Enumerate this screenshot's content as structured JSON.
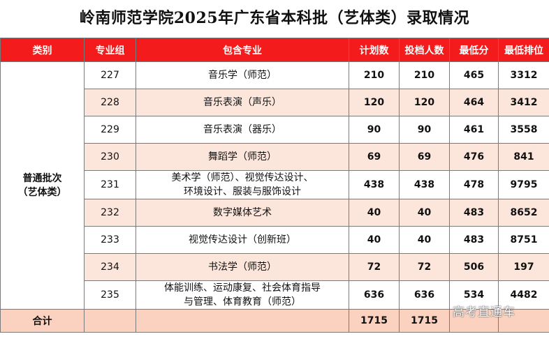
{
  "title": "岭南师范学院2025年广东省本科批（艺体类）录取情况",
  "headers": [
    "类别",
    "专业组",
    "包含专业",
    "计划数",
    "投档人数",
    "最低分",
    "最低排位"
  ],
  "category": {
    "line1": "普通批次",
    "line2": "（艺体类）"
  },
  "rows": [
    {
      "group": "227",
      "major_lines": [
        "音乐学（师范）"
      ],
      "plan": "210",
      "admitted": "210",
      "min_score": "465",
      "min_rank": "3312"
    },
    {
      "group": "228",
      "major_lines": [
        "音乐表演（声乐）"
      ],
      "plan": "120",
      "admitted": "120",
      "min_score": "464",
      "min_rank": "3412"
    },
    {
      "group": "229",
      "major_lines": [
        "音乐表演（器乐）"
      ],
      "plan": "90",
      "admitted": "90",
      "min_score": "461",
      "min_rank": "3558"
    },
    {
      "group": "230",
      "major_lines": [
        "舞蹈学（师范）"
      ],
      "plan": "69",
      "admitted": "69",
      "min_score": "476",
      "min_rank": "841"
    },
    {
      "group": "231",
      "major_lines": [
        "美术学（师范）、视觉传达设计、",
        "环境设计、服装与服饰设计"
      ],
      "plan": "438",
      "admitted": "438",
      "min_score": "478",
      "min_rank": "9795"
    },
    {
      "group": "232",
      "major_lines": [
        "数字媒体艺术"
      ],
      "plan": "40",
      "admitted": "40",
      "min_score": "483",
      "min_rank": "8652"
    },
    {
      "group": "233",
      "major_lines": [
        "视觉传达设计（创新班）"
      ],
      "plan": "40",
      "admitted": "40",
      "min_score": "483",
      "min_rank": "8751"
    },
    {
      "group": "234",
      "major_lines": [
        "书法学（师范）"
      ],
      "plan": "72",
      "admitted": "72",
      "min_score": "506",
      "min_rank": "197"
    },
    {
      "group": "235",
      "major_lines": [
        "体能训练、运动康复、社会体育指导",
        "与管理、体育教育（师范）"
      ],
      "plan": "636",
      "admitted": "636",
      "min_score": "534",
      "min_rank": "4482"
    }
  ],
  "total": {
    "label": "合计",
    "plan": "1715",
    "admitted": "1715"
  },
  "watermark": "高考直通车",
  "colors": {
    "header_bg": "#f31b1b",
    "alt_row_bg": "#fce6dc",
    "total_row_bg": "#fbd2c0"
  }
}
